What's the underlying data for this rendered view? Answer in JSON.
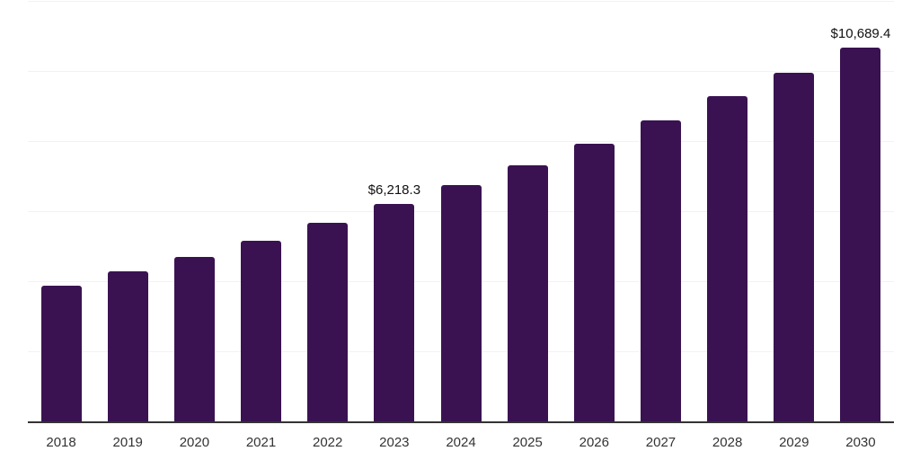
{
  "chart_data": {
    "type": "bar",
    "title": "",
    "xlabel": "",
    "ylabel": "",
    "categories": [
      "2018",
      "2019",
      "2020",
      "2021",
      "2022",
      "2023",
      "2024",
      "2025",
      "2026",
      "2027",
      "2028",
      "2029",
      "2030"
    ],
    "values": [
      3910,
      4320,
      4730,
      5190,
      5700,
      6218.3,
      6780,
      7340,
      7960,
      8620,
      9310,
      9980,
      10689.4
    ],
    "value_labels": [
      "",
      "",
      "",
      "",
      "",
      "$6,218.3",
      "",
      "",
      "",
      "",
      "",
      "",
      "$10,689.4"
    ],
    "ylim": [
      0,
      12000
    ],
    "gridline_step": 2000,
    "grid": "horizontal-only",
    "legend": "none",
    "y_axis_tick_labels_visible": false,
    "colors": {
      "bar": "#3A1252",
      "axis_line": "#333333",
      "gridline": "#F2F2F2",
      "tick_label": "#333333",
      "value_label": "#111111",
      "background": "#FFFFFF"
    }
  }
}
